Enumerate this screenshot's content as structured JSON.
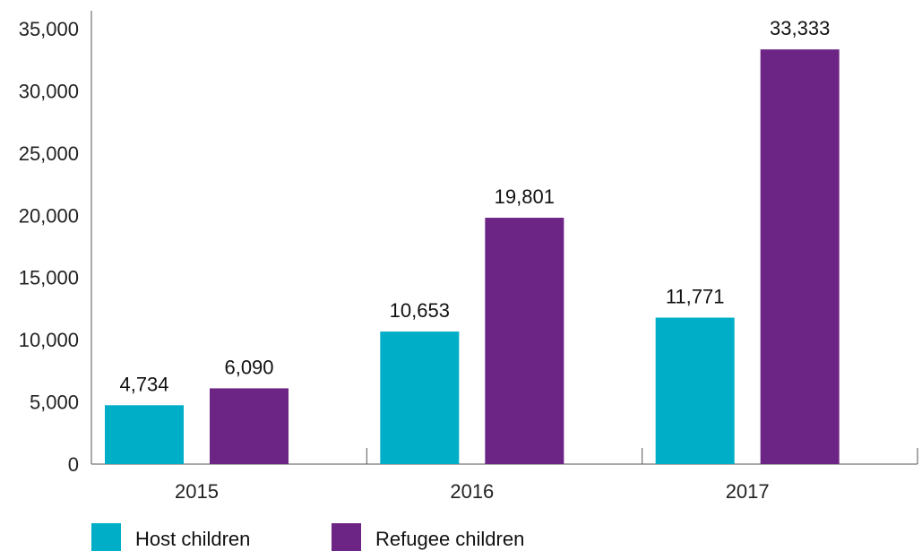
{
  "chart_data": {
    "type": "bar",
    "title": "",
    "xlabel": "",
    "ylabel": "",
    "categories": [
      "2015",
      "2016",
      "2017"
    ],
    "series": [
      {
        "name": "Host children",
        "values": [
          4734,
          10653,
          11771
        ],
        "labels": [
          "4,734",
          "10,653",
          "11,771"
        ],
        "color": "#00AEC7"
      },
      {
        "name": "Refugee children",
        "values": [
          6090,
          19801,
          33333
        ],
        "labels": [
          "6,090",
          "19,801",
          "33,333"
        ],
        "color": "#6C2585"
      }
    ],
    "ylim": [
      0,
      35000
    ],
    "yticks": [
      0,
      5000,
      10000,
      15000,
      20000,
      25000,
      30000,
      35000
    ],
    "ytick_labels": [
      "0",
      "5,000",
      "10,000",
      "15,000",
      "20,000",
      "25,000",
      "30,000",
      "35,000"
    ],
    "grid": false,
    "legend_position": "bottom-left"
  }
}
